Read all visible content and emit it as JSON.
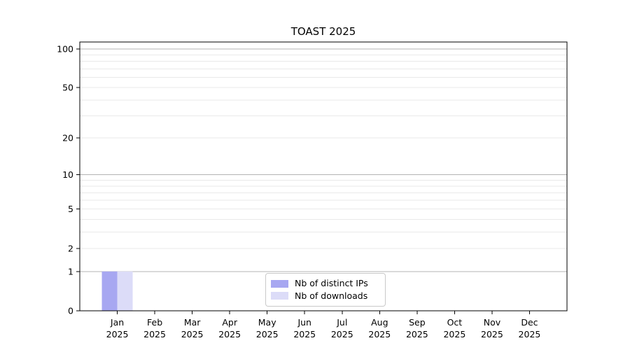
{
  "chart_data": {
    "type": "bar",
    "title": "TOAST 2025",
    "categories": [
      "Jan 2025",
      "Feb 2025",
      "Mar 2025",
      "Apr 2025",
      "May 2025",
      "Jun 2025",
      "Jul 2025",
      "Aug 2025",
      "Sep 2025",
      "Oct 2025",
      "Nov 2025",
      "Dec 2025"
    ],
    "series": [
      {
        "name": "Nb of distinct IPs",
        "color": "#a7a7f1",
        "values": [
          1,
          0,
          0,
          0,
          0,
          0,
          0,
          0,
          0,
          0,
          0,
          0
        ]
      },
      {
        "name": "Nb of downloads",
        "color": "#dcdcf8",
        "values": [
          1,
          0,
          0,
          0,
          0,
          0,
          0,
          0,
          0,
          0,
          0,
          0
        ]
      }
    ],
    "xlabel": "",
    "ylabel": "",
    "y_scale": "log1p",
    "ylim": [
      0,
      113
    ],
    "y_tick_labels": [
      0,
      1,
      2,
      5,
      10,
      20,
      50,
      100
    ],
    "y_major_gridlines": [
      1,
      10,
      100
    ],
    "y_minor_gridlines": [
      2,
      3,
      4,
      5,
      6,
      7,
      8,
      9,
      20,
      30,
      40,
      50,
      60,
      70,
      80,
      90
    ],
    "grid": "horizontal",
    "legend_position": "inside-bottom-center",
    "colors": {
      "axis": "#000000",
      "major_grid": "#b4b4b4",
      "minor_grid": "#e9e9e9",
      "background": "#ffffff",
      "tick_label": "#000000"
    }
  }
}
